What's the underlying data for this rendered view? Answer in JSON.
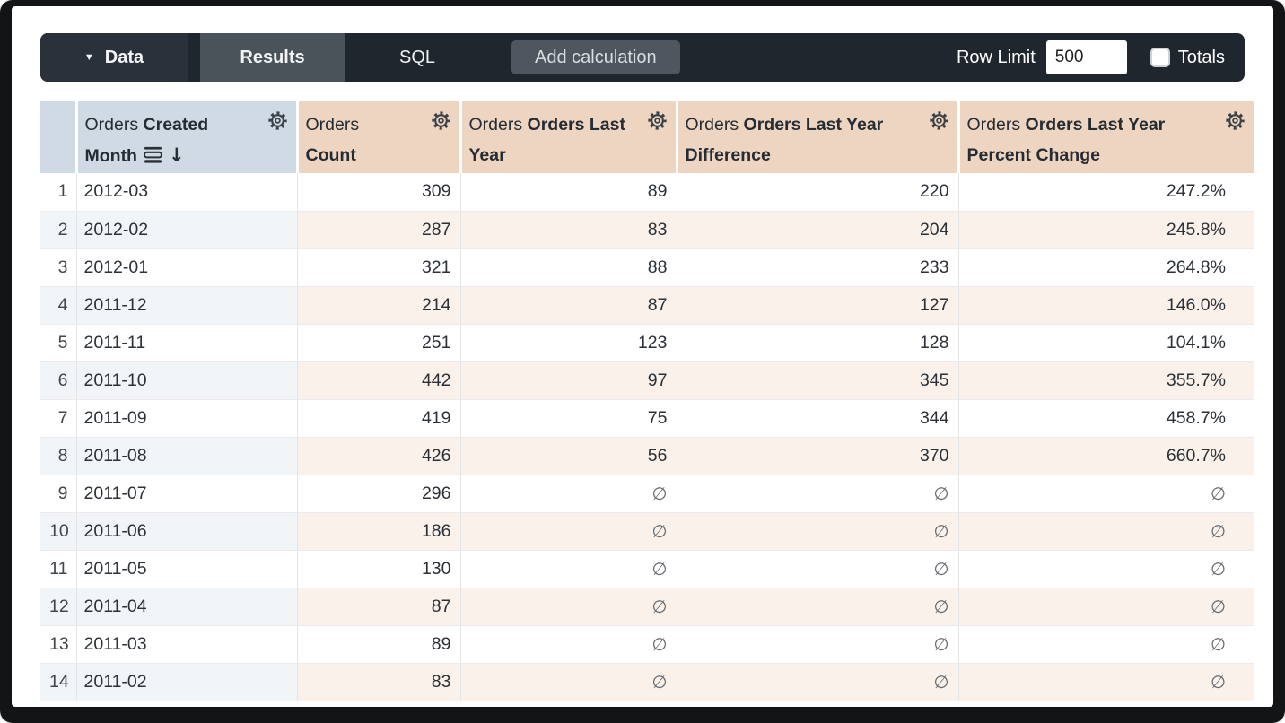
{
  "toolbar": {
    "data_label": "Data",
    "tabs": [
      {
        "label": "Results",
        "active": true
      },
      {
        "label": "SQL",
        "active": false
      }
    ],
    "add_calculation_label": "Add calculation",
    "row_limit_label": "Row Limit",
    "row_limit_value": "500",
    "totals_label": "Totals",
    "totals_checked": false
  },
  "table": {
    "columns": [
      {
        "view": "Orders",
        "field": "Created Month",
        "type": "dimension",
        "sorted": "descending"
      },
      {
        "view": "Orders",
        "field": "Count",
        "type": "measure"
      },
      {
        "view": "Orders",
        "field": "Orders Last Year",
        "type": "measure"
      },
      {
        "view": "Orders",
        "field": "Orders Last Year Difference",
        "type": "measure"
      },
      {
        "view": "Orders",
        "field": "Orders Last Year Percent Change",
        "type": "measure"
      }
    ],
    "null_symbol": "∅",
    "rows": [
      {
        "n": "1",
        "cells": [
          "2012-03",
          "309",
          "89",
          "220",
          "247.2%"
        ]
      },
      {
        "n": "2",
        "cells": [
          "2012-02",
          "287",
          "83",
          "204",
          "245.8%"
        ]
      },
      {
        "n": "3",
        "cells": [
          "2012-01",
          "321",
          "88",
          "233",
          "264.8%"
        ]
      },
      {
        "n": "4",
        "cells": [
          "2011-12",
          "214",
          "87",
          "127",
          "146.0%"
        ]
      },
      {
        "n": "5",
        "cells": [
          "2011-11",
          "251",
          "123",
          "128",
          "104.1%"
        ]
      },
      {
        "n": "6",
        "cells": [
          "2011-10",
          "442",
          "97",
          "345",
          "355.7%"
        ]
      },
      {
        "n": "7",
        "cells": [
          "2011-09",
          "419",
          "75",
          "344",
          "458.7%"
        ]
      },
      {
        "n": "8",
        "cells": [
          "2011-08",
          "426",
          "56",
          "370",
          "660.7%"
        ]
      },
      {
        "n": "9",
        "cells": [
          "2011-07",
          "296",
          "∅",
          "∅",
          "∅"
        ]
      },
      {
        "n": "10",
        "cells": [
          "2011-06",
          "186",
          "∅",
          "∅",
          "∅"
        ]
      },
      {
        "n": "11",
        "cells": [
          "2011-05",
          "130",
          "∅",
          "∅",
          "∅"
        ]
      },
      {
        "n": "12",
        "cells": [
          "2011-04",
          "87",
          "∅",
          "∅",
          "∅"
        ]
      },
      {
        "n": "13",
        "cells": [
          "2011-03",
          "89",
          "∅",
          "∅",
          "∅"
        ]
      },
      {
        "n": "14",
        "cells": [
          "2011-02",
          "83",
          "∅",
          "∅",
          "∅"
        ]
      }
    ]
  },
  "colors": {
    "toolbar_bg": "#20262d",
    "toolbar_segment_bg": "#2a313a",
    "active_tab_bg": "#4a525a",
    "button_bg": "#4f565f",
    "dimension_header_bg": "#cfdae4",
    "measure_header_bg": "#eed5c2",
    "dimension_row_tint": "#f2f5f8",
    "measure_row_tint": "#f9f1ea",
    "text_dark": "#262c33",
    "null_gray": "#646a70"
  }
}
